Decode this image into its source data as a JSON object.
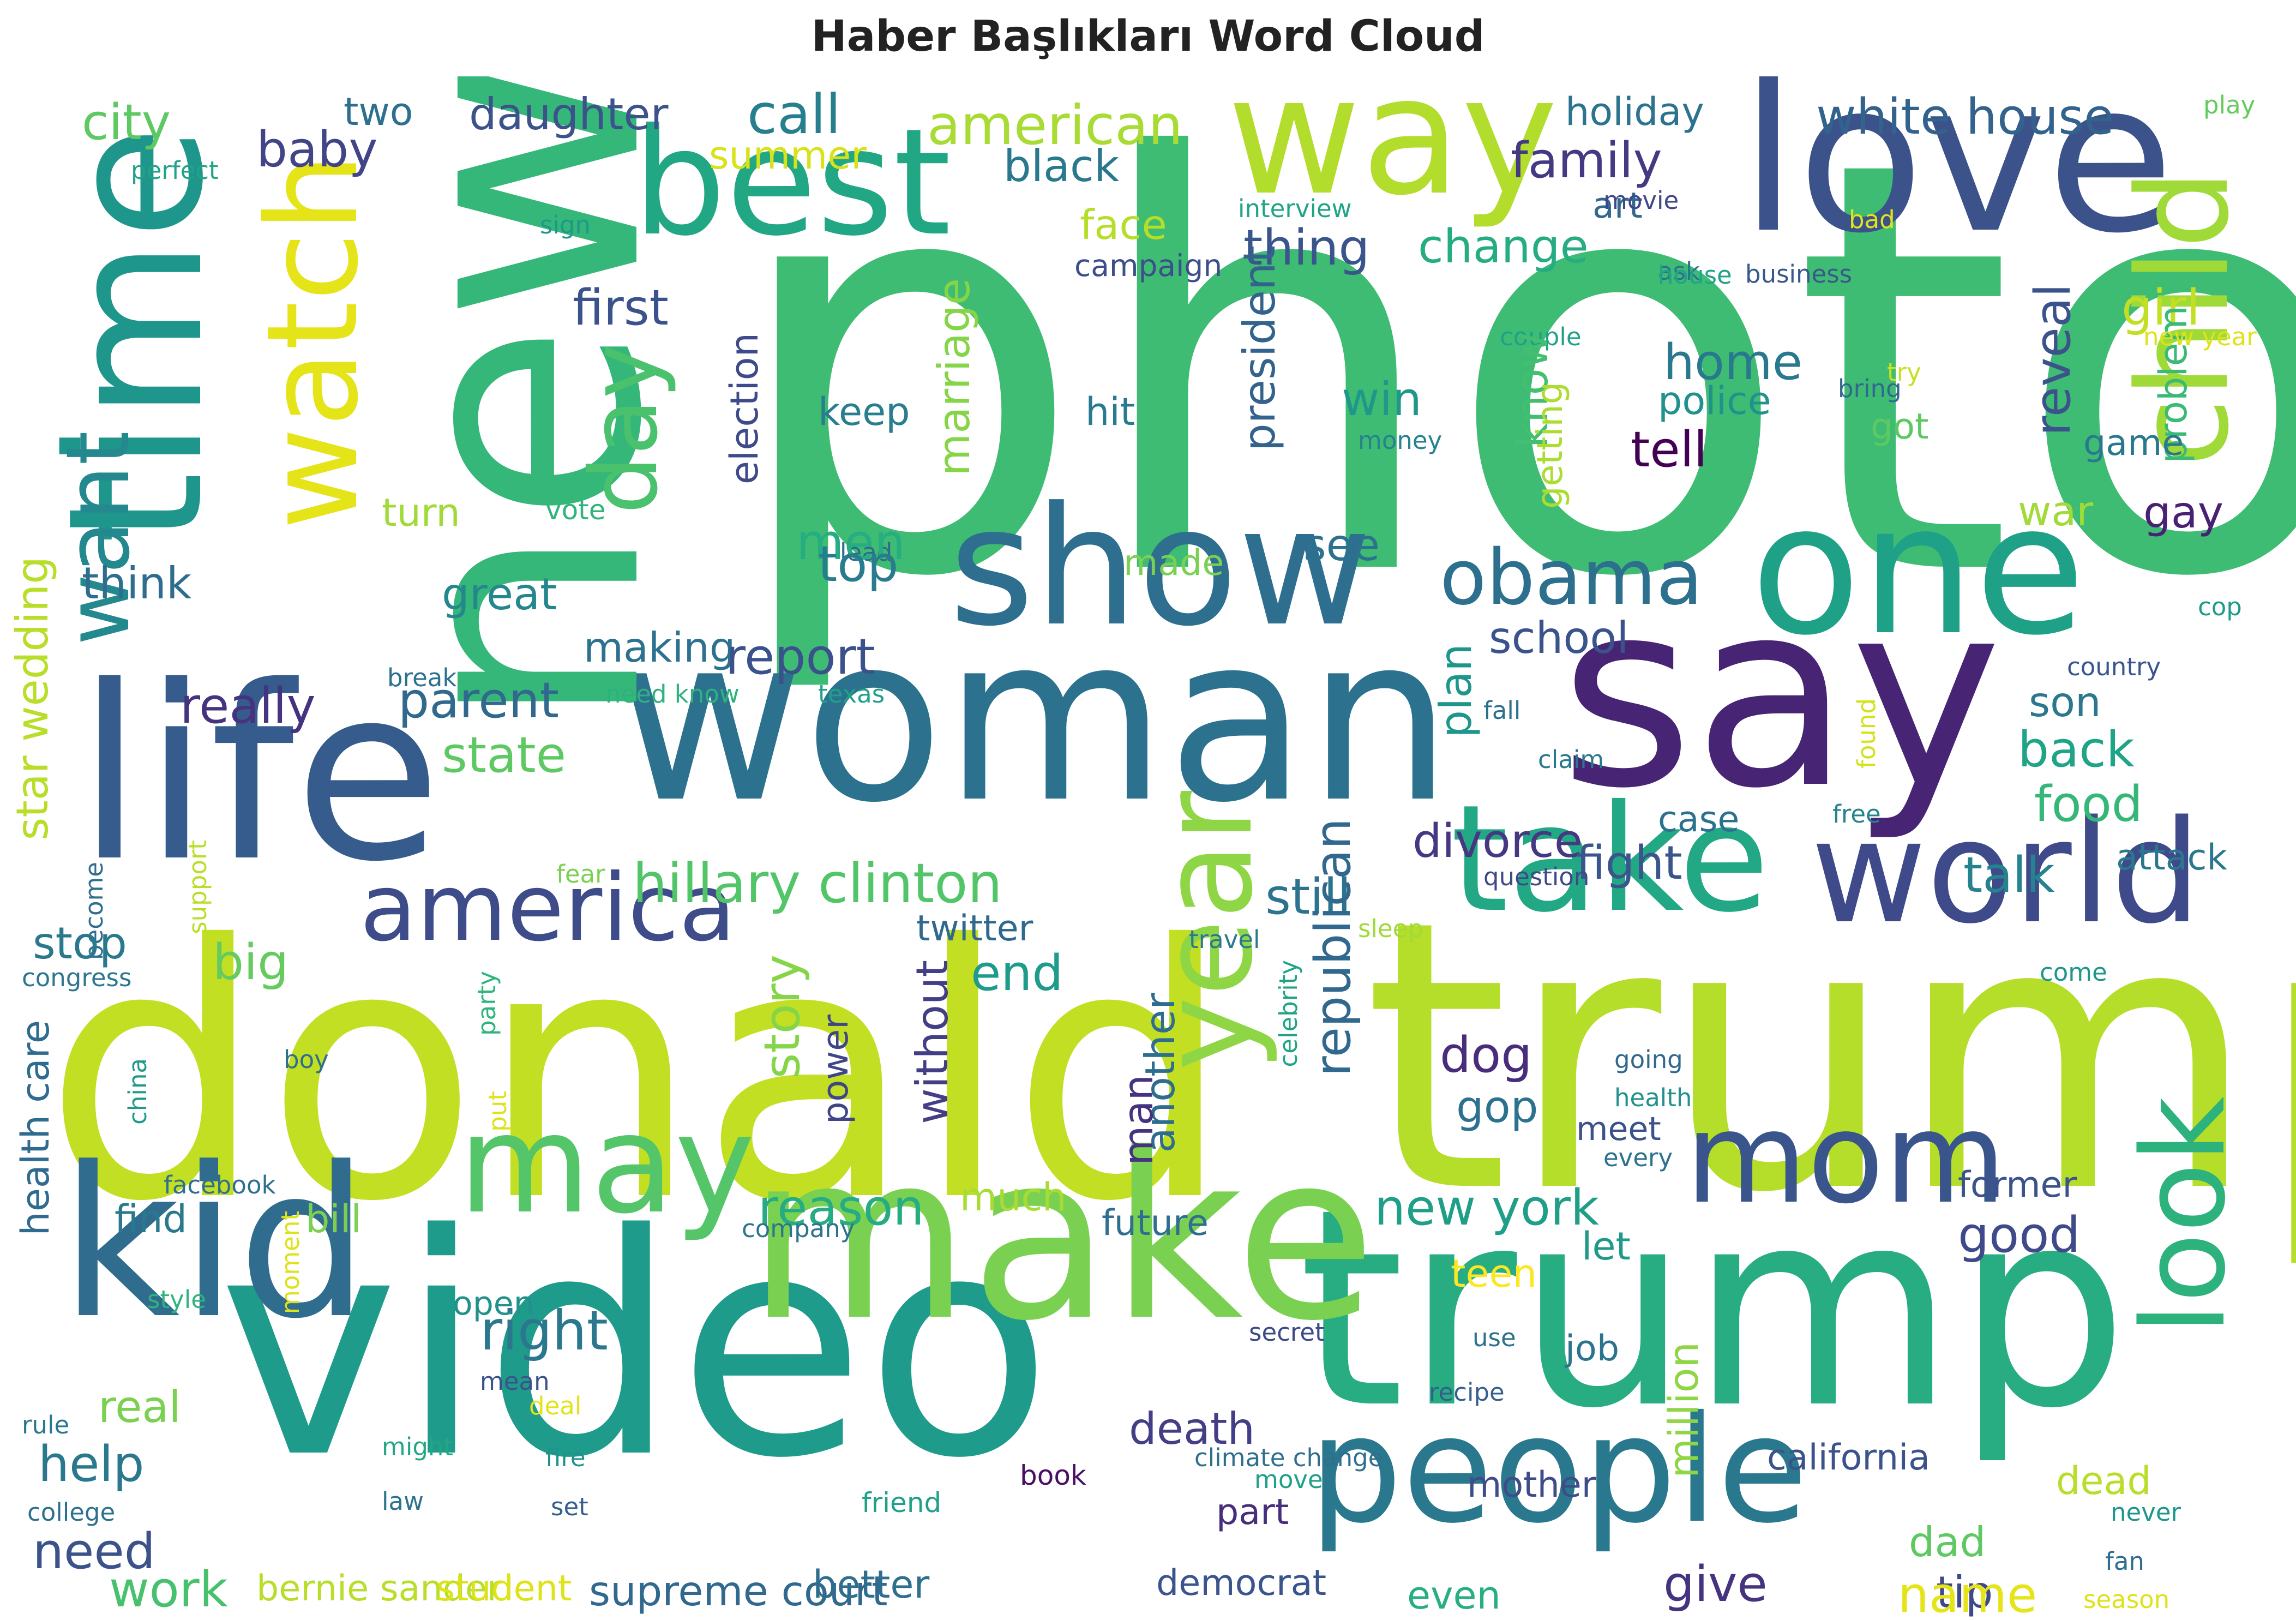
{
  "title": "Haber Başlıkları Word Cloud",
  "palette": [
    "#440154",
    "#482878",
    "#3e4989",
    "#31688e",
    "#26828e",
    "#1f9e89",
    "#35b779",
    "#6ece58",
    "#b5de2b",
    "#fde725"
  ],
  "words": [
    {
      "text": "photo",
      "c": "#3fbc73"
    },
    {
      "text": "donald",
      "c": "#c2df23"
    },
    {
      "text": "trump",
      "c": "#b5de2b"
    },
    {
      "text": "trump",
      "c": "#27ad81"
    },
    {
      "text": "video",
      "c": "#1e9b8a"
    },
    {
      "text": "make",
      "c": "#7ad151"
    },
    {
      "text": "woman",
      "c": "#2c728e"
    },
    {
      "text": "say",
      "c": "#482475"
    },
    {
      "text": "new",
      "c": "#35b779"
    },
    {
      "text": "life",
      "c": "#365c8d"
    },
    {
      "text": "kid",
      "c": "#2f6c8e"
    },
    {
      "text": "show",
      "c": "#2e6e8e"
    },
    {
      "text": "one",
      "c": "#1fa188"
    },
    {
      "text": "love",
      "c": "#3b528b"
    },
    {
      "text": "way",
      "c": "#b2dd2d"
    },
    {
      "text": "time",
      "c": "#1f968b"
    },
    {
      "text": "watch",
      "c": "#e5e419"
    },
    {
      "text": "best",
      "c": "#22a785"
    },
    {
      "text": "people",
      "c": "#2a788e"
    },
    {
      "text": "take",
      "c": "#22a884"
    },
    {
      "text": "world",
      "c": "#3e4a89"
    },
    {
      "text": "mom",
      "c": "#39558c"
    },
    {
      "text": "may",
      "c": "#54c568"
    },
    {
      "text": "look",
      "c": "#2db27d"
    },
    {
      "text": "year",
      "c": "#8ed645"
    },
    {
      "text": "child",
      "c": "#a0da39"
    },
    {
      "text": "day",
      "c": "#4ac16d"
    },
    {
      "text": "want",
      "c": "#23898e"
    },
    {
      "text": "america",
      "c": "#3e4c8a"
    },
    {
      "text": "obama",
      "c": "#2d708e"
    },
    {
      "text": "hillary clinton",
      "c": "#52c569"
    },
    {
      "text": "right",
      "c": "#2a778e"
    },
    {
      "text": "american",
      "c": "#a8db34"
    },
    {
      "text": "white house",
      "c": "#33638d"
    },
    {
      "text": "family",
      "c": "#443a83"
    },
    {
      "text": "city",
      "c": "#5ec962"
    },
    {
      "text": "baby",
      "c": "#414487"
    },
    {
      "text": "two",
      "c": "#2d708e"
    },
    {
      "text": "daughter",
      "c": "#3b528b"
    },
    {
      "text": "call",
      "c": "#277f8e"
    },
    {
      "text": "summer",
      "c": "#d8e219"
    },
    {
      "text": "black",
      "c": "#2a788e"
    },
    {
      "text": "holiday",
      "c": "#2c738e"
    },
    {
      "text": "play",
      "c": "#65cb5e"
    },
    {
      "text": "perfect",
      "c": "#20a386"
    },
    {
      "text": "art",
      "c": "#31688e"
    },
    {
      "text": "face",
      "c": "#b5de2b"
    },
    {
      "text": "thing",
      "c": "#3a548c"
    },
    {
      "text": "change",
      "c": "#25ac82"
    },
    {
      "text": "interview",
      "c": "#20a386"
    },
    {
      "text": "movie",
      "c": "#404688"
    },
    {
      "text": "bad",
      "c": "#e2e418"
    },
    {
      "text": "sign",
      "c": "#1f988b"
    },
    {
      "text": "campaign",
      "c": "#3c4f8a"
    },
    {
      "text": "ask",
      "c": "#2c738e"
    },
    {
      "text": "house",
      "c": "#20a486"
    },
    {
      "text": "business",
      "c": "#38588c"
    },
    {
      "text": "first",
      "c": "#3b528b"
    },
    {
      "text": "girl",
      "c": "#c2df23"
    },
    {
      "text": "problem",
      "c": "#3aba76"
    },
    {
      "text": "new year",
      "c": "#dde318"
    },
    {
      "text": "couple",
      "c": "#1fa188"
    },
    {
      "text": "try",
      "c": "#c8e020"
    },
    {
      "text": "bring",
      "c": "#31688e"
    },
    {
      "text": "home",
      "c": "#29798e"
    },
    {
      "text": "police",
      "c": "#21918c"
    },
    {
      "text": "reveal",
      "c": "#3b528b"
    },
    {
      "text": "got",
      "c": "#5ec962"
    },
    {
      "text": "game",
      "c": "#2a788e"
    },
    {
      "text": "marriage",
      "c": "#86d549"
    },
    {
      "text": "keep",
      "c": "#287d8e"
    },
    {
      "text": "hit",
      "c": "#297a8e"
    },
    {
      "text": "president",
      "c": "#33628d"
    },
    {
      "text": "win",
      "c": "#1f978b"
    },
    {
      "text": "know",
      "c": "#43bf71"
    },
    {
      "text": "getting",
      "c": "#addc30"
    },
    {
      "text": "money",
      "c": "#26828e"
    },
    {
      "text": "tell",
      "c": "#440154"
    },
    {
      "text": "gay",
      "c": "#482173"
    },
    {
      "text": "election",
      "c": "#3e4a89"
    },
    {
      "text": "lead",
      "c": "#30698e"
    },
    {
      "text": "vote",
      "c": "#2fb47c"
    },
    {
      "text": "turn",
      "c": "#a0da39"
    },
    {
      "text": "war",
      "c": "#a2da37"
    },
    {
      "text": "men",
      "c": "#26ad81"
    },
    {
      "text": "made",
      "c": "#7ad151"
    },
    {
      "text": "see",
      "c": "#2c728e"
    },
    {
      "text": "top",
      "c": "#287c8e"
    },
    {
      "text": "think",
      "c": "#2e6d8e"
    },
    {
      "text": "great",
      "c": "#24878e"
    },
    {
      "text": "making",
      "c": "#2c728e"
    },
    {
      "text": "school",
      "c": "#3a538b"
    },
    {
      "text": "report",
      "c": "#3b518b"
    },
    {
      "text": "cop",
      "c": "#1f9a8a"
    },
    {
      "text": "star wedding",
      "c": "#b8de29"
    },
    {
      "text": "really",
      "c": "#46337f"
    },
    {
      "text": "parent",
      "c": "#31688e"
    },
    {
      "text": "break",
      "c": "#2c728e"
    },
    {
      "text": "need know",
      "c": "#2db27d"
    },
    {
      "text": "texas",
      "c": "#1fa088"
    },
    {
      "text": "plan",
      "c": "#1f968b"
    },
    {
      "text": "country",
      "c": "#39568c"
    },
    {
      "text": "son",
      "c": "#2a778e"
    },
    {
      "text": "state",
      "c": "#5ec962"
    },
    {
      "text": "fall",
      "c": "#2e6f8e"
    },
    {
      "text": "found",
      "c": "#d2e21b"
    },
    {
      "text": "back",
      "c": "#20a386"
    },
    {
      "text": "claim",
      "c": "#2a788e"
    },
    {
      "text": "case",
      "c": "#2c718e"
    },
    {
      "text": "free",
      "c": "#25838e"
    },
    {
      "text": "food",
      "c": "#35b779"
    },
    {
      "text": "divorce",
      "c": "#453781"
    },
    {
      "text": "fight",
      "c": "#3a548c"
    },
    {
      "text": "support",
      "c": "#bade28"
    },
    {
      "text": "become",
      "c": "#2e6e8e"
    },
    {
      "text": "fear",
      "c": "#7ad151"
    },
    {
      "text": "question",
      "c": "#3e4989"
    },
    {
      "text": "party",
      "c": "#2fb47c"
    },
    {
      "text": "talk",
      "c": "#26828e"
    },
    {
      "text": "attack",
      "c": "#2a788e"
    },
    {
      "text": "still",
      "c": "#2c738e"
    },
    {
      "text": "stop",
      "c": "#2a788e"
    },
    {
      "text": "twitter",
      "c": "#31688e"
    },
    {
      "text": "travel",
      "c": "#2a788e"
    },
    {
      "text": "sleep",
      "c": "#a0da39"
    },
    {
      "text": "come",
      "c": "#1f968b"
    },
    {
      "text": "congress",
      "c": "#2a778e"
    },
    {
      "text": "big",
      "c": "#65cb5e"
    },
    {
      "text": "end",
      "c": "#1e9b8a"
    },
    {
      "text": "republican",
      "c": "#31688e"
    },
    {
      "text": "celebrity",
      "c": "#20a386"
    },
    {
      "text": "story",
      "c": "#86d549"
    },
    {
      "text": "another",
      "c": "#2e6d8e"
    },
    {
      "text": "power",
      "c": "#404588"
    },
    {
      "text": "without",
      "c": "#433e85"
    },
    {
      "text": "health care",
      "c": "#2f6b8e"
    },
    {
      "text": "china",
      "c": "#1f9a8a"
    },
    {
      "text": "boy",
      "c": "#2e6e8e"
    },
    {
      "text": "put",
      "c": "#dde318"
    },
    {
      "text": "dog",
      "c": "#472d7b"
    },
    {
      "text": "gop",
      "c": "#2c728e"
    },
    {
      "text": "going",
      "c": "#31688e"
    },
    {
      "text": "health",
      "c": "#21918c"
    },
    {
      "text": "man",
      "c": "#46337f"
    },
    {
      "text": "meet",
      "c": "#3b528b"
    },
    {
      "text": "every",
      "c": "#2c718e"
    },
    {
      "text": "facebook",
      "c": "#2e6e8e"
    },
    {
      "text": "bill",
      "c": "#7ad151"
    },
    {
      "text": "reason",
      "c": "#25ac82"
    },
    {
      "text": "much",
      "c": "#a8db34"
    },
    {
      "text": "new york",
      "c": "#1f9f88"
    },
    {
      "text": "former",
      "c": "#3b528b"
    },
    {
      "text": "good",
      "c": "#3e4a89"
    },
    {
      "text": "find",
      "c": "#2a788e"
    },
    {
      "text": "company",
      "c": "#2c738e"
    },
    {
      "text": "future",
      "c": "#2e6e8e"
    },
    {
      "text": "let",
      "c": "#1f9a8a"
    },
    {
      "text": "teen",
      "c": "#fde725"
    },
    {
      "text": "style",
      "c": "#2fb47c"
    },
    {
      "text": "moment",
      "c": "#dde318"
    },
    {
      "text": "open",
      "c": "#21918c"
    },
    {
      "text": "secret",
      "c": "#3e4989"
    },
    {
      "text": "use",
      "c": "#2c718e"
    },
    {
      "text": "job",
      "c": "#2c738e"
    },
    {
      "text": "million",
      "c": "#8ed645"
    },
    {
      "text": "real",
      "c": "#7ad151"
    },
    {
      "text": "mean",
      "c": "#3b528b"
    },
    {
      "text": "deal",
      "c": "#e2e418"
    },
    {
      "text": "recipe",
      "c": "#35608d"
    },
    {
      "text": "death",
      "c": "#433e85"
    },
    {
      "text": "help",
      "c": "#2a788e"
    },
    {
      "text": "rule",
      "c": "#2a788e"
    },
    {
      "text": "might",
      "c": "#22a785"
    },
    {
      "text": "fire",
      "c": "#21918c"
    },
    {
      "text": "climate change",
      "c": "#2e6f8e"
    },
    {
      "text": "move",
      "c": "#1fa088"
    },
    {
      "text": "mother",
      "c": "#3e4c8a"
    },
    {
      "text": "california",
      "c": "#3b528b"
    },
    {
      "text": "dead",
      "c": "#b8de29"
    },
    {
      "text": "college",
      "c": "#2c718e"
    },
    {
      "text": "law",
      "c": "#2c738e"
    },
    {
      "text": "set",
      "c": "#35608d"
    },
    {
      "text": "friend",
      "c": "#1fa088"
    },
    {
      "text": "book",
      "c": "#471063"
    },
    {
      "text": "part",
      "c": "#472d7b"
    },
    {
      "text": "dad",
      "c": "#5ec962"
    },
    {
      "text": "never",
      "c": "#1f968b"
    },
    {
      "text": "need",
      "c": "#3b528b"
    },
    {
      "text": "tip",
      "c": "#3e4989"
    },
    {
      "text": "fan",
      "c": "#2e6e8e"
    },
    {
      "text": "work",
      "c": "#48c16e"
    },
    {
      "text": "bernie sander",
      "c": "#b8de29"
    },
    {
      "text": "student",
      "c": "#dde318"
    },
    {
      "text": "supreme court",
      "c": "#31688e"
    },
    {
      "text": "better",
      "c": "#2e6e8e"
    },
    {
      "text": "democrat",
      "c": "#3a548c"
    },
    {
      "text": "even",
      "c": "#29af7f"
    },
    {
      "text": "give",
      "c": "#46337f"
    },
    {
      "text": "name",
      "c": "#e5e419"
    },
    {
      "text": "season",
      "c": "#dde318"
    }
  ]
}
